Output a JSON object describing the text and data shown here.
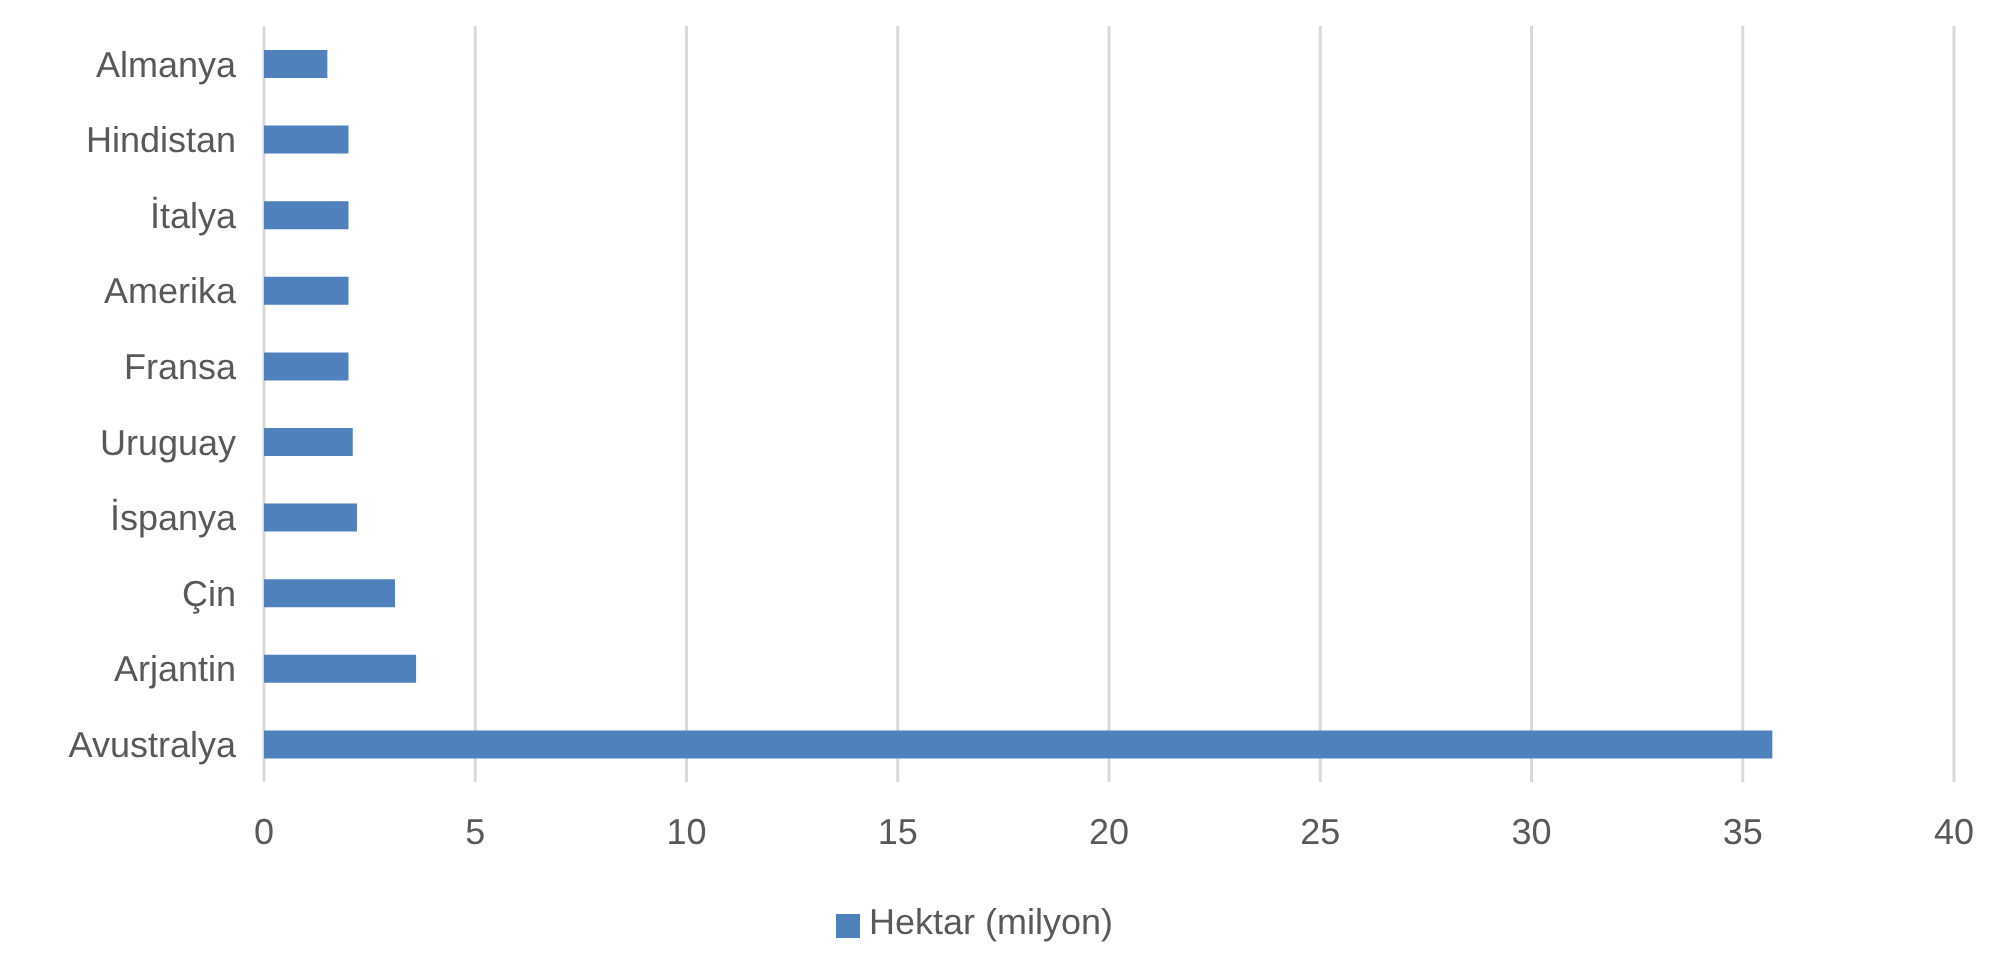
{
  "chart_data": {
    "type": "bar",
    "orientation": "horizontal",
    "categories": [
      "Almanya",
      "Hindistan",
      "İtalya",
      "Amerika",
      "Fransa",
      "Uruguay",
      "İspanya",
      "Çin",
      "Arjantin",
      "Avustralya"
    ],
    "series": [
      {
        "name": "Hektar (milyon)",
        "color": "#4f81bd",
        "values": [
          1.5,
          2.0,
          2.0,
          2.0,
          2.0,
          2.1,
          2.2,
          3.1,
          3.6,
          35.7
        ]
      }
    ],
    "xlim": [
      0,
      40
    ],
    "xticks": [
      0,
      5,
      10,
      15,
      20,
      25,
      30,
      35,
      40
    ],
    "grid": "x",
    "legend": "bottom"
  }
}
